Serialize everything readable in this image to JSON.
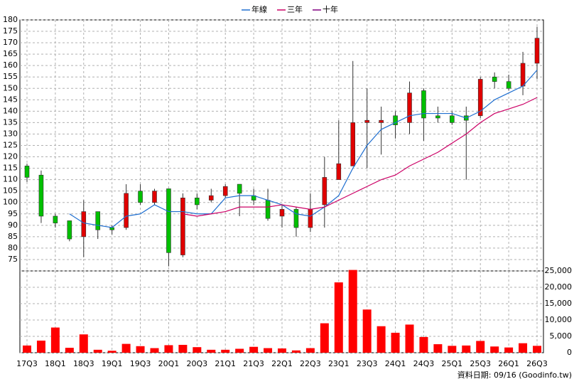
{
  "chart_data": {
    "type": "candlestick",
    "categories": [
      "17Q3",
      null,
      "18Q1",
      null,
      "18Q3",
      null,
      "19Q1",
      null,
      "19Q3",
      null,
      "20Q1",
      null,
      "20Q3",
      null,
      "21Q1",
      null,
      "21Q3",
      null,
      "22Q1",
      null,
      "22Q3",
      null,
      "23Q1",
      null,
      "23Q3",
      null,
      "24Q1",
      null,
      "24Q3",
      null,
      "25Q1",
      null,
      "25Q3",
      null,
      "26Q1",
      null,
      "26Q3"
    ],
    "open": [
      116,
      112,
      94,
      92,
      85,
      96,
      89,
      89,
      105,
      100,
      106,
      77,
      102,
      101,
      103,
      108,
      103,
      101,
      94,
      97,
      89,
      99,
      110,
      116,
      135,
      135,
      138,
      135,
      149,
      138,
      138,
      138,
      138,
      155,
      153,
      151,
      161
    ],
    "high": [
      117,
      114,
      95,
      92,
      101,
      96,
      90,
      108,
      108,
      106,
      106,
      104,
      104,
      106,
      108,
      108,
      106,
      106,
      99,
      98,
      104,
      120,
      136,
      162,
      150,
      142,
      140,
      153,
      150,
      142,
      140,
      142,
      155,
      157,
      156,
      166,
      177
    ],
    "low": [
      109,
      91,
      89,
      83,
      76,
      84,
      86,
      88,
      99,
      99,
      72,
      76,
      97,
      100,
      102,
      94,
      99,
      92,
      89,
      85,
      87,
      89,
      110,
      116,
      115,
      121,
      128,
      130,
      127,
      135,
      134,
      110,
      137,
      150,
      149,
      147,
      154
    ],
    "close": [
      111,
      94,
      91,
      84,
      96,
      88,
      88,
      104,
      100,
      105,
      78,
      102,
      99,
      103,
      107,
      104,
      101,
      93,
      97,
      89,
      97,
      111,
      117,
      135,
      136,
      136,
      134,
      148,
      137,
      137,
      135,
      136,
      154,
      153,
      150,
      161,
      172
    ],
    "up_color": "#e00000",
    "down_color": "#00c000",
    "ylim": [
      70,
      180
    ],
    "yticks": [
      75,
      80,
      85,
      90,
      95,
      100,
      105,
      110,
      115,
      120,
      125,
      130,
      135,
      140,
      145,
      150,
      155,
      160,
      165,
      170,
      175,
      180
    ],
    "grid": true,
    "series": [
      {
        "name": "年線",
        "color": "#1f6fd0",
        "values": [
          null,
          null,
          null,
          95,
          91,
          90,
          89,
          94,
          95,
          99,
          96,
          96,
          95,
          95,
          102,
          103,
          103,
          101,
          99,
          95,
          94,
          98,
          103,
          115,
          125,
          132,
          135,
          138,
          139,
          139,
          139,
          137,
          140,
          145,
          148,
          151,
          158
        ]
      },
      {
        "name": "三年",
        "color": "#cc0066",
        "values": [
          null,
          null,
          null,
          null,
          null,
          null,
          null,
          null,
          null,
          null,
          null,
          95,
          94,
          95,
          96,
          98,
          98,
          98,
          99,
          98,
          97,
          98,
          101,
          104,
          107,
          110,
          112,
          116,
          119,
          122,
          126,
          130,
          135,
          139,
          141,
          143,
          146
        ]
      },
      {
        "name": "十年",
        "color": "#800080",
        "values": [
          null,
          null,
          null,
          null,
          null,
          null,
          null,
          null,
          null,
          null,
          null,
          null,
          null,
          null,
          null,
          null,
          null,
          null,
          null,
          null,
          null,
          null,
          null,
          null,
          null,
          null,
          null,
          null,
          null,
          null,
          null,
          null,
          null,
          null,
          null,
          null,
          null
        ]
      }
    ],
    "legend": "top",
    "volume": {
      "color": "#ff0000",
      "values": [
        2200,
        3700,
        7700,
        1500,
        5600,
        900,
        600,
        2700,
        2000,
        1400,
        2300,
        2400,
        1700,
        900,
        900,
        1200,
        1800,
        1400,
        1300,
        700,
        1400,
        9000,
        21500,
        25300,
        13200,
        8100,
        6100,
        8600,
        4800,
        2600,
        2100,
        2200,
        3600,
        1900,
        1600,
        2900,
        2100
      ],
      "ylim": [
        0,
        25000
      ],
      "yticks": [
        0,
        {
          "value": 5000,
          "label": "5,000"
        },
        {
          "value": 10000,
          "label": "10,000"
        },
        {
          "value": 15000,
          "label": "15,000"
        },
        {
          "value": 20000,
          "label": "20,000"
        },
        {
          "value": 25000,
          "label": "25,000"
        }
      ]
    },
    "source": "資料日期: 09/16 (Goodinfo.tw)"
  }
}
